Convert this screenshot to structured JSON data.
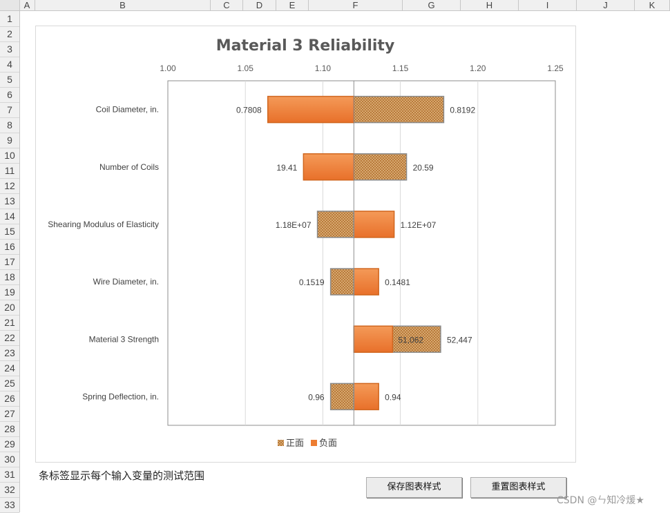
{
  "sheet": {
    "columns": [
      "A",
      "B",
      "C",
      "D",
      "E",
      "F",
      "G",
      "H",
      "I",
      "J",
      "K"
    ],
    "rows": [
      "1",
      "2",
      "3",
      "4",
      "5",
      "6",
      "7",
      "8",
      "9",
      "10",
      "11",
      "12",
      "13",
      "14",
      "15",
      "16",
      "17",
      "18",
      "19",
      "20",
      "21",
      "22",
      "23",
      "24",
      "25",
      "26",
      "27",
      "28",
      "29",
      "30",
      "31",
      "32",
      "33"
    ]
  },
  "chart_data": {
    "type": "bar",
    "orientation": "horizontal-tornado",
    "title": "Material 3 Reliability",
    "xlim": [
      1.0,
      1.25
    ],
    "xticks": [
      "1.00",
      "1.05",
      "1.10",
      "1.15",
      "1.20",
      "1.25"
    ],
    "tick_values": [
      1.0,
      1.05,
      1.1,
      1.15,
      1.2,
      1.25
    ],
    "base": 1.12,
    "grid": true,
    "legend_position": "bottom",
    "categories": [
      "Coil Diameter, in.",
      "Number of Coils",
      "Shearing Modulus of Elasticity",
      "Wire Diameter, in.",
      "Material 3 Strength",
      "Spring Deflection, in."
    ],
    "series": [
      {
        "name": "正面",
        "values": [
          1.178,
          1.154,
          1.0965,
          1.105,
          1.176,
          1.105
        ]
      },
      {
        "name": "负面",
        "values": [
          1.0645,
          1.0875,
          1.146,
          1.136,
          1.145,
          1.136
        ]
      }
    ],
    "labels_left": [
      "0.7808",
      "19.41",
      "1.18E+07",
      "0.1519",
      "",
      "0.96"
    ],
    "labels_right": [
      "0.8192",
      "20.59",
      "1.12E+07",
      "0.1481",
      "52,447",
      "0.94"
    ],
    "labels_inner": [
      "",
      "",
      "",
      "",
      "51,062",
      ""
    ],
    "colors": {
      "positive": "#c8945a",
      "negative": "#ed7d31",
      "pattern_dot": "#b97a3a",
      "grid": "#d9d9d9",
      "axis": "#8c8c8c",
      "title": "#595959"
    }
  },
  "footer": {
    "note": "条标签显示每个输入变量的测试范围",
    "save_button": "保存图表样式",
    "reset_button": "重置图表样式",
    "watermark": "CSDN @ㄣ知冷煖★"
  }
}
